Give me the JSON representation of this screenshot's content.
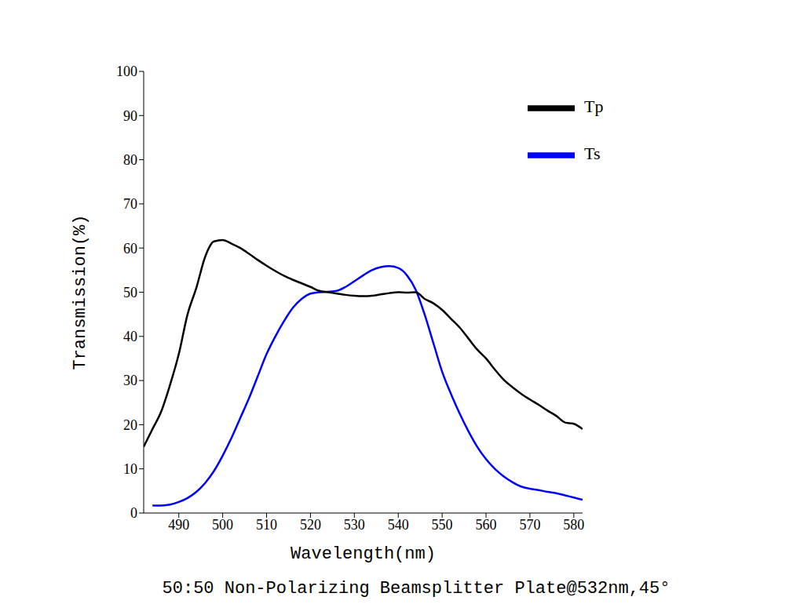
{
  "chart_data": {
    "type": "line",
    "title": "50:50 Non-Polarizing Beamsplitter Plate@532nm,45°",
    "x_label": "Wavelength(nm)",
    "y_label": "Transmission(%)",
    "x": [
      482,
      484,
      486,
      488,
      490,
      492,
      494,
      496,
      498,
      500,
      502,
      504,
      506,
      508,
      510,
      512,
      514,
      516,
      518,
      520,
      522,
      524,
      526,
      528,
      530,
      532,
      534,
      536,
      538,
      540,
      542,
      544,
      546,
      548,
      550,
      552,
      554,
      556,
      558,
      560,
      562,
      564,
      566,
      568,
      570,
      572,
      574,
      576,
      578,
      580,
      582
    ],
    "series": [
      {
        "name": "Ts",
        "color": "#0000ff",
        "values": [
          null,
          1.7,
          1.7,
          1.9,
          2.5,
          3.4,
          4.8,
          6.8,
          9.5,
          13,
          17,
          21.5,
          26,
          31,
          36,
          40,
          43.5,
          46.5,
          48.5,
          49.7,
          50,
          50.1,
          50.3,
          51.2,
          52.5,
          53.8,
          55,
          55.7,
          55.9,
          55.5,
          53.8,
          50.5,
          45,
          38.5,
          32,
          27,
          22.5,
          18.5,
          15,
          12.2,
          10,
          8.3,
          7,
          6,
          5.5,
          5.2,
          4.8,
          4.5,
          4,
          3.5,
          3
        ]
      },
      {
        "name": "Tp",
        "color": "#000000",
        "values": [
          15,
          19,
          23,
          29,
          36,
          45,
          51,
          58,
          61.5,
          61.8,
          61,
          60,
          58.7,
          57.3,
          56,
          54.8,
          53.7,
          52.8,
          52,
          51.2,
          50.3,
          50,
          49.7,
          49.4,
          49.2,
          49.1,
          49.2,
          49.5,
          49.8,
          50,
          49.9,
          50,
          48.5,
          47.5,
          46,
          44,
          42,
          39.5,
          37,
          35,
          32.5,
          30.2,
          28.5,
          27,
          25.7,
          24.5,
          23.2,
          22,
          20.5,
          20.2,
          19
        ]
      }
    ],
    "xlim": [
      482,
      582
    ],
    "xticks": [
      490,
      500,
      510,
      520,
      530,
      540,
      550,
      560,
      570,
      580
    ],
    "ylim": [
      0,
      100
    ],
    "yticks": [
      0,
      10,
      20,
      30,
      40,
      50,
      60,
      70,
      80,
      90,
      100
    ],
    "grid": false,
    "legend": "upper right"
  }
}
